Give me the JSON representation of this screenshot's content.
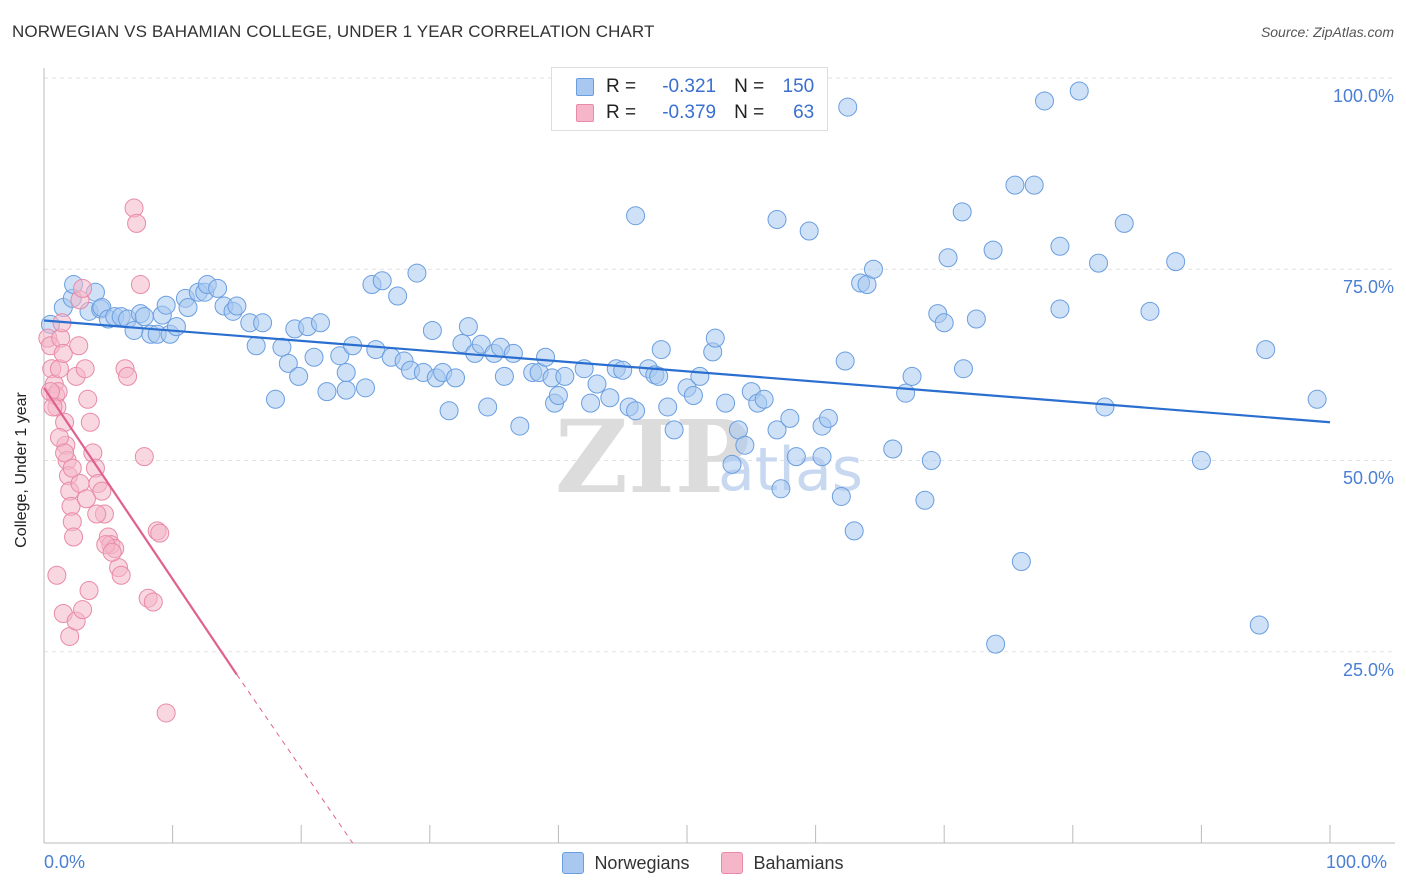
{
  "header": {
    "title": "NORWEGIAN VS BAHAMIAN COLLEGE, UNDER 1 YEAR CORRELATION CHART",
    "source": "Source: ZipAtlas.com"
  },
  "legend": {
    "rows": [
      {
        "r_label": "R =",
        "r_value": "-0.321",
        "n_label": "N =",
        "n_value": "150",
        "color": "#a8c8f0"
      },
      {
        "r_label": "R =",
        "r_value": "-0.379",
        "n_label": "N =",
        "n_value": "63",
        "color": "#f4b6c8"
      }
    ]
  },
  "watermark": {
    "zip": "ZIP",
    "atlas": "atlas"
  },
  "chart_data": {
    "type": "scatter",
    "title": "NORWEGIAN VS BAHAMIAN COLLEGE, UNDER 1 YEAR CORRELATION CHART",
    "xlabel": "",
    "ylabel": "College, Under 1 year",
    "xlim": [
      0,
      100
    ],
    "ylim": [
      0,
      100
    ],
    "x_tick_labels": [
      "0.0%",
      "100.0%"
    ],
    "y_tick_labels": [
      "100.0%",
      "75.0%",
      "50.0%",
      "25.0%"
    ],
    "y_tick_values": [
      100,
      75,
      50,
      25
    ],
    "grid": true,
    "legend_position": "bottom",
    "series": [
      {
        "name": "Norwegians",
        "color": "#a8c8f0",
        "stroke": "#6a9ee0",
        "trend": {
          "x": [
            0,
            100
          ],
          "y": [
            68.3,
            55.0
          ],
          "color": "#2a6fd0"
        },
        "points": [
          [
            0.5,
            67.8
          ],
          [
            1.5,
            70
          ],
          [
            2.2,
            71.2
          ],
          [
            2.3,
            73
          ],
          [
            3.5,
            69.5
          ],
          [
            4,
            72
          ],
          [
            4.4,
            69.8
          ],
          [
            4.5,
            70
          ],
          [
            5,
            68.5
          ],
          [
            5.5,
            68.8
          ],
          [
            6,
            68.8
          ],
          [
            6.5,
            68.5
          ],
          [
            7,
            67
          ],
          [
            7.5,
            69.2
          ],
          [
            7.8,
            68.8
          ],
          [
            8.3,
            66.5
          ],
          [
            8.8,
            66.5
          ],
          [
            9.2,
            69
          ],
          [
            9.5,
            70.3
          ],
          [
            9.8,
            66.5
          ],
          [
            10.3,
            67.5
          ],
          [
            11,
            71.2
          ],
          [
            11.2,
            70
          ],
          [
            12,
            72
          ],
          [
            12.5,
            72
          ],
          [
            12.7,
            73
          ],
          [
            13.5,
            72.5
          ],
          [
            14,
            70.2
          ],
          [
            14.7,
            69.5
          ],
          [
            15,
            70.2
          ],
          [
            16,
            68
          ],
          [
            16.5,
            65
          ],
          [
            17,
            68
          ],
          [
            18,
            58
          ],
          [
            18.5,
            64.8
          ],
          [
            19,
            62.7
          ],
          [
            19.5,
            67.2
          ],
          [
            19.8,
            61
          ],
          [
            20.5,
            67.5
          ],
          [
            21,
            63.5
          ],
          [
            21.5,
            68
          ],
          [
            22,
            59
          ],
          [
            23,
            63.7
          ],
          [
            23.5,
            59.2
          ],
          [
            23.5,
            61.5
          ],
          [
            24,
            65
          ],
          [
            25,
            59.5
          ],
          [
            25.5,
            73
          ],
          [
            25.8,
            64.5
          ],
          [
            26.3,
            73.5
          ],
          [
            27,
            63.5
          ],
          [
            27.5,
            71.5
          ],
          [
            28,
            63
          ],
          [
            28.5,
            61.8
          ],
          [
            29,
            74.5
          ],
          [
            29.5,
            61.5
          ],
          [
            30.2,
            67
          ],
          [
            30.5,
            60.8
          ],
          [
            31,
            61.5
          ],
          [
            32,
            60.8
          ],
          [
            31.5,
            56.5
          ],
          [
            32.5,
            65.3
          ],
          [
            33,
            67.5
          ],
          [
            33.5,
            64
          ],
          [
            34,
            65.2
          ],
          [
            34.5,
            57
          ],
          [
            35,
            64
          ],
          [
            35.5,
            64.8
          ],
          [
            35.8,
            61
          ],
          [
            36.5,
            64
          ],
          [
            37,
            54.5
          ],
          [
            38,
            61.5
          ],
          [
            38.5,
            61.5
          ],
          [
            39,
            63.5
          ],
          [
            39.5,
            60.8
          ],
          [
            39.7,
            57.5
          ],
          [
            40,
            58.5
          ],
          [
            40.5,
            61
          ],
          [
            42,
            62
          ],
          [
            42.5,
            57.5
          ],
          [
            43,
            60
          ],
          [
            44,
            58.2
          ],
          [
            44.5,
            62
          ],
          [
            45,
            61.8
          ],
          [
            45.5,
            57
          ],
          [
            46,
            56.5
          ],
          [
            47,
            62
          ],
          [
            47.5,
            61.2
          ],
          [
            47.8,
            61
          ],
          [
            48,
            64.5
          ],
          [
            48.5,
            57
          ],
          [
            49,
            54
          ],
          [
            50,
            59.5
          ],
          [
            50.5,
            58.5
          ],
          [
            51,
            61
          ],
          [
            52,
            64.2
          ],
          [
            52.2,
            66
          ],
          [
            53,
            57.5
          ],
          [
            53.5,
            49.5
          ],
          [
            54,
            54
          ],
          [
            54.5,
            52
          ],
          [
            55,
            59
          ],
          [
            55.5,
            57.5
          ],
          [
            56,
            58
          ],
          [
            57,
            54
          ],
          [
            57.3,
            46.3
          ],
          [
            58,
            55.5
          ],
          [
            58.5,
            50.5
          ],
          [
            60.5,
            50.5
          ],
          [
            60.5,
            54.5
          ],
          [
            61,
            55.5
          ],
          [
            62,
            45.3
          ],
          [
            63,
            40.8
          ],
          [
            63.5,
            73.2
          ],
          [
            64,
            73
          ],
          [
            64.5,
            75
          ],
          [
            66,
            51.5
          ],
          [
            67,
            58.8
          ],
          [
            67.5,
            61
          ],
          [
            68.5,
            44.8
          ],
          [
            69,
            50
          ],
          [
            69.5,
            69.2
          ],
          [
            70,
            68
          ],
          [
            71.5,
            62
          ],
          [
            74,
            26
          ],
          [
            76,
            36.8
          ],
          [
            79,
            69.8
          ],
          [
            82,
            75.8
          ],
          [
            82.5,
            57
          ],
          [
            84,
            81
          ],
          [
            86,
            69.5
          ],
          [
            90,
            50
          ],
          [
            94.5,
            28.5
          ],
          [
            70.3,
            76.5
          ],
          [
            72.5,
            68.5
          ],
          [
            73.8,
            77.5
          ],
          [
            77,
            86
          ],
          [
            88,
            76
          ],
          [
            71.4,
            82.5
          ],
          [
            75.5,
            86
          ],
          [
            77.8,
            97
          ],
          [
            79,
            78
          ],
          [
            80.5,
            98.3
          ],
          [
            46,
            82
          ],
          [
            57,
            81.5
          ],
          [
            59.5,
            80
          ],
          [
            62.5,
            96.2
          ],
          [
            62.3,
            63
          ],
          [
            95,
            64.5
          ],
          [
            99,
            58
          ]
        ]
      },
      {
        "name": "Bahamians",
        "color": "#f4b6c8",
        "stroke": "#e88aa8",
        "trend": {
          "x": [
            0,
            15
          ],
          "y": [
            59.5,
            22.0
          ],
          "dashed_to": [
            24.0,
            0
          ],
          "color": "#e06090"
        },
        "points": [
          [
            0.3,
            66
          ],
          [
            0.5,
            65
          ],
          [
            0.6,
            62
          ],
          [
            0.8,
            60
          ],
          [
            0.9,
            58.5
          ],
          [
            1,
            57
          ],
          [
            1.1,
            59
          ],
          [
            1.2,
            62
          ],
          [
            1.3,
            66
          ],
          [
            1.4,
            68
          ],
          [
            1.5,
            64
          ],
          [
            1.6,
            55
          ],
          [
            1.7,
            52
          ],
          [
            1.8,
            50
          ],
          [
            1.9,
            48
          ],
          [
            2,
            46
          ],
          [
            2.1,
            44
          ],
          [
            2.2,
            42
          ],
          [
            2.3,
            40
          ],
          [
            2.5,
            61
          ],
          [
            2.7,
            65
          ],
          [
            2.8,
            71
          ],
          [
            3,
            72.5
          ],
          [
            3.2,
            62
          ],
          [
            3.4,
            58
          ],
          [
            3.6,
            55
          ],
          [
            3.8,
            51
          ],
          [
            4,
            49
          ],
          [
            4.2,
            47
          ],
          [
            4.5,
            46
          ],
          [
            4.7,
            43
          ],
          [
            5,
            40
          ],
          [
            5.2,
            39
          ],
          [
            5.5,
            38.5
          ],
          [
            5.8,
            36
          ],
          [
            6,
            35
          ],
          [
            6.3,
            62
          ],
          [
            6.5,
            61
          ],
          [
            7,
            83
          ],
          [
            7.2,
            81
          ],
          [
            7.5,
            73
          ],
          [
            7.8,
            50.5
          ],
          [
            8.1,
            32
          ],
          [
            8.5,
            31.5
          ],
          [
            8.8,
            40.8
          ],
          [
            9,
            40.5
          ],
          [
            9.5,
            17
          ],
          [
            1,
            35
          ],
          [
            1.5,
            30
          ],
          [
            2,
            27
          ],
          [
            2.5,
            29
          ],
          [
            3,
            30.5
          ],
          [
            3.5,
            33
          ],
          [
            0.5,
            59
          ],
          [
            0.7,
            57
          ],
          [
            1.2,
            53
          ],
          [
            1.6,
            51
          ],
          [
            2.2,
            49
          ],
          [
            2.8,
            47
          ],
          [
            3.3,
            45
          ],
          [
            4.1,
            43
          ],
          [
            4.8,
            39
          ],
          [
            5.3,
            38
          ]
        ]
      }
    ]
  }
}
